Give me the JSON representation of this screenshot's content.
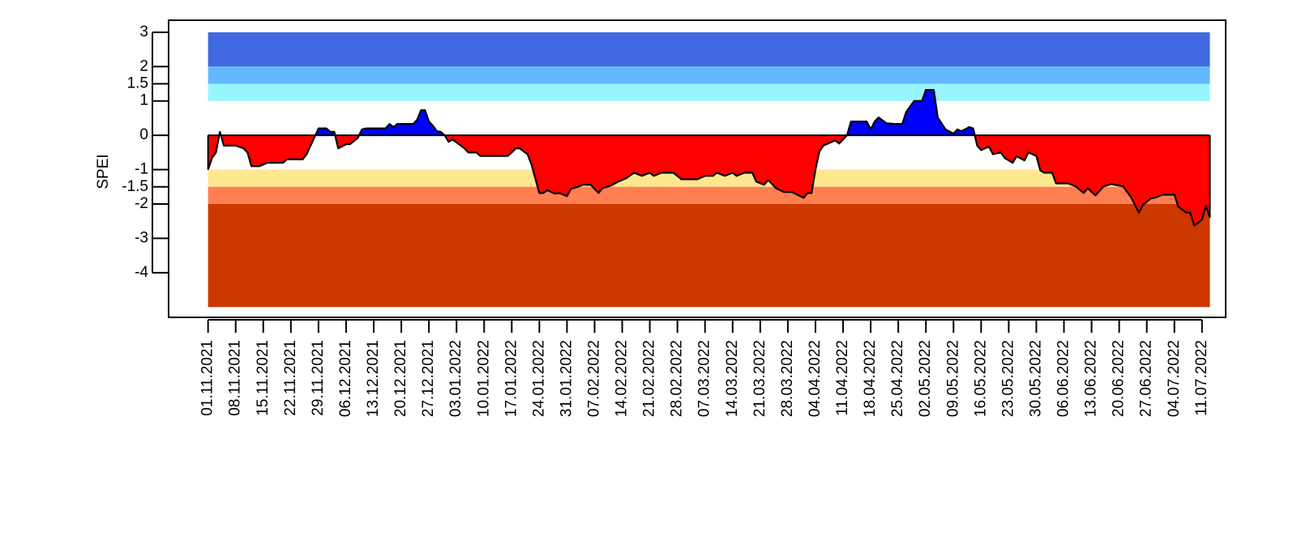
{
  "chart_data": {
    "type": "area",
    "y_label": "SPEI",
    "x": [
      "01.11.2021",
      "02.11.2021",
      "03.11.2021",
      "04.11.2021",
      "05.11.2021",
      "08.11.2021",
      "10.11.2021",
      "11.11.2021",
      "12.11.2021",
      "14.11.2021",
      "16.11.2021",
      "20.11.2021",
      "21.11.2021",
      "25.11.2021",
      "26.11.2021",
      "29.11.2021",
      "01.12.2021",
      "02.12.2021",
      "03.12.2021",
      "04.12.2021",
      "06.12.2021",
      "07.12.2021",
      "09.12.2021",
      "10.12.2021",
      "11.12.2021",
      "16.12.2021",
      "17.12.2021",
      "18.12.2021",
      "19.12.2021",
      "23.12.2021",
      "24.12.2021",
      "25.12.2021",
      "26.12.2021",
      "27.12.2021",
      "28.12.2021",
      "29.12.2021",
      "30.12.2021",
      "31.12.2021",
      "01.01.2022",
      "02.01.2022",
      "05.01.2022",
      "06.01.2022",
      "08.01.2022",
      "09.01.2022",
      "16.01.2022",
      "17.01.2022",
      "18.01.2022",
      "19.01.2022",
      "21.01.2022",
      "22.01.2022",
      "24.01.2022",
      "25.01.2022",
      "26.01.2022",
      "28.01.2022",
      "29.01.2022",
      "31.01.2022",
      "01.02.2022",
      "03.02.2022",
      "04.02.2022",
      "06.02.2022",
      "08.02.2022",
      "09.02.2022",
      "11.02.2022",
      "13.02.2022",
      "15.02.2022",
      "17.02.2022",
      "19.02.2022",
      "21.02.2022",
      "22.02.2022",
      "24.02.2022",
      "27.02.2022",
      "01.03.2022",
      "05.03.2022",
      "07.03.2022",
      "09.03.2022",
      "10.03.2022",
      "12.03.2022",
      "14.03.2022",
      "15.03.2022",
      "17.03.2022",
      "19.03.2022",
      "20.03.2022",
      "22.03.2022",
      "23.03.2022",
      "25.03.2022",
      "27.03.2022",
      "29.03.2022",
      "01.04.2022",
      "02.04.2022",
      "03.04.2022",
      "04.04.2022",
      "05.04.2022",
      "06.04.2022",
      "08.04.2022",
      "09.04.2022",
      "10.04.2022",
      "11.04.2022",
      "12.04.2022",
      "13.04.2022",
      "15.04.2022",
      "17.04.2022",
      "18.04.2022",
      "19.04.2022",
      "20.04.2022",
      "22.04.2022",
      "24.04.2022",
      "26.04.2022",
      "27.04.2022",
      "29.04.2022",
      "01.05.2022",
      "02.05.2022",
      "04.05.2022",
      "05.05.2022",
      "07.05.2022",
      "09.05.2022",
      "10.05.2022",
      "11.05.2022",
      "13.05.2022",
      "14.05.2022",
      "15.05.2022",
      "16.05.2022",
      "18.05.2022",
      "19.05.2022",
      "21.05.2022",
      "22.05.2022",
      "24.05.2022",
      "25.05.2022",
      "27.05.2022",
      "28.05.2022",
      "30.05.2022",
      "31.05.2022",
      "01.06.2022",
      "03.06.2022",
      "04.06.2022",
      "07.06.2022",
      "09.06.2022",
      "11.06.2022",
      "12.06.2022",
      "14.06.2022",
      "16.06.2022",
      "18.06.2022",
      "21.06.2022",
      "23.06.2022",
      "25.06.2022",
      "26.06.2022",
      "28.06.2022",
      "29.06.2022",
      "01.07.2022",
      "04.07.2022",
      "05.07.2022",
      "07.07.2022",
      "08.07.2022",
      "09.07.2022",
      "10.07.2022",
      "11.07.2022",
      "12.07.2022",
      "13.07.2022"
    ],
    "values": [
      -1.0,
      -0.66,
      -0.5,
      0.1,
      -0.3,
      -0.3,
      -0.38,
      -0.5,
      -0.9,
      -0.9,
      -0.8,
      -0.8,
      -0.7,
      -0.7,
      -0.55,
      0.2,
      0.2,
      0.1,
      0.1,
      -0.38,
      -0.26,
      -0.26,
      -0.07,
      0.17,
      0.2,
      0.2,
      0.33,
      0.24,
      0.33,
      0.33,
      0.45,
      0.73,
      0.73,
      0.4,
      0.28,
      0.12,
      0.1,
      0,
      -0.19,
      -0.12,
      -0.38,
      -0.5,
      -0.5,
      -0.6,
      -0.6,
      -0.5,
      -0.38,
      -0.38,
      -0.55,
      -0.85,
      -1.68,
      -1.68,
      -1.6,
      -1.7,
      -1.68,
      -1.77,
      -1.56,
      -1.49,
      -1.44,
      -1.44,
      -1.68,
      -1.54,
      -1.47,
      -1.35,
      -1.25,
      -1.09,
      -1.18,
      -1.09,
      -1.18,
      -1.09,
      -1.09,
      -1.28,
      -1.28,
      -1.18,
      -1.18,
      -1.09,
      -1.18,
      -1.09,
      -1.18,
      -1.09,
      -1.09,
      -1.35,
      -1.44,
      -1.3,
      -1.54,
      -1.65,
      -1.65,
      -1.82,
      -1.68,
      -1.68,
      -1.0,
      -0.47,
      -0.3,
      -0.2,
      -0.15,
      -0.24,
      -0.12,
      0,
      0.4,
      0.4,
      0.4,
      0.17,
      0.4,
      0.52,
      0.35,
      0.33,
      0.33,
      0.68,
      1.0,
      1.0,
      1.32,
      1.32,
      0.52,
      0.17,
      0.05,
      0.17,
      0.12,
      0.24,
      0.2,
      -0.3,
      -0.43,
      -0.33,
      -0.55,
      -0.5,
      -0.66,
      -0.8,
      -0.61,
      -0.73,
      -0.5,
      -0.6,
      -1.02,
      -1.09,
      -1.09,
      -1.4,
      -1.4,
      -1.49,
      -1.68,
      -1.54,
      -1.75,
      -1.49,
      -1.42,
      -1.49,
      -1.8,
      -2.25,
      -2.03,
      -1.84,
      -1.82,
      -1.73,
      -1.73,
      -2.08,
      -2.25,
      -2.25,
      -2.62,
      -2.55,
      -2.45,
      -2.05,
      -2.4
    ],
    "line_color": "#000000",
    "positive_color": "#0000ff",
    "negative_color": "#ff0000",
    "bands": [
      {
        "range": [
          2,
          3
        ],
        "color": "#4169e1"
      },
      {
        "range": [
          1.5,
          2
        ],
        "color": "#63b8ff"
      },
      {
        "range": [
          1,
          1.5
        ],
        "color": "#98f5ff"
      },
      {
        "range": [
          -1.5,
          -1
        ],
        "color": "#ffe78f"
      },
      {
        "range": [
          -2,
          -1.5
        ],
        "color": "#ff7f50"
      },
      {
        "range": [
          -5,
          -2
        ],
        "color": "#cd3700"
      }
    ],
    "xlim": [
      "22.10.2021",
      "17.07.2022"
    ],
    "xticks": [
      "01.11.2021",
      "08.11.2021",
      "15.11.2021",
      "22.11.2021",
      "29.11.2021",
      "06.12.2021",
      "13.12.2021",
      "20.12.2021",
      "27.12.2021",
      "03.01.2022",
      "10.01.2022",
      "17.01.2022",
      "24.01.2022",
      "31.01.2022",
      "07.02.2022",
      "14.02.2022",
      "21.02.2022",
      "28.02.2022",
      "07.03.2022",
      "14.03.2022",
      "21.03.2022",
      "28.03.2022",
      "04.04.2022",
      "11.04.2022",
      "18.04.2022",
      "25.04.2022",
      "02.05.2022",
      "09.05.2022",
      "16.05.2022",
      "23.05.2022",
      "30.05.2022",
      "06.06.2022",
      "13.06.2022",
      "20.06.2022",
      "27.06.2022",
      "04.07.2022",
      "11.07.2022"
    ],
    "ylim": [
      -5.3,
      3.35
    ],
    "yticks": [
      3,
      2,
      1.5,
      1,
      0,
      -1,
      -1.5,
      -2,
      -3,
      -4
    ]
  }
}
